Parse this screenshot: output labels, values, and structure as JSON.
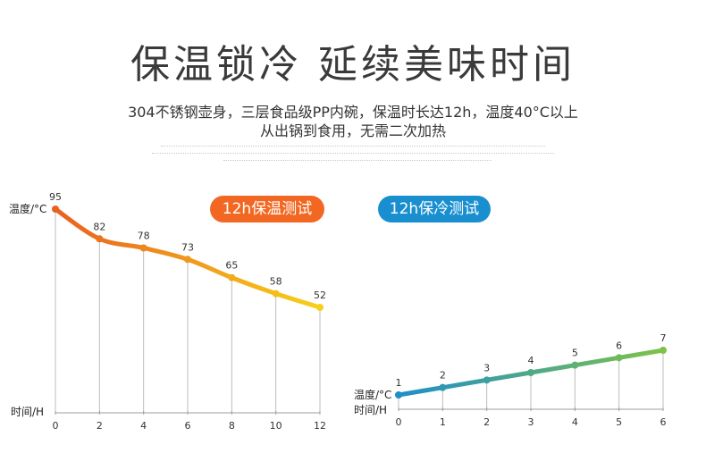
{
  "header": {
    "title": "保温锁冷 延续美味时间",
    "subtitle_line1": "304不锈钢壶身，三层食品级PP内碗，保温时长达12h，温度40°C以上",
    "subtitle_line2": "从出锅到食用，无需二次加热"
  },
  "chart_data": [
    {
      "type": "line",
      "badge": "12h保温测试",
      "ylabel": "温度/°C",
      "xlabel": "时间/H",
      "x": [
        0,
        2,
        4,
        6,
        8,
        10,
        12
      ],
      "values": [
        95,
        82,
        78,
        73,
        65,
        58,
        52
      ],
      "data_labels": [
        "95",
        "82",
        "78",
        "73",
        "65",
        "58",
        "52"
      ],
      "tick_labels": [
        "0",
        "2",
        "4",
        "6",
        "8",
        "10",
        "12"
      ],
      "colors": [
        "#e9601f",
        "#f7d01a"
      ],
      "badge_color": "#f26822"
    },
    {
      "type": "line",
      "badge": "12h保冷测试",
      "ylabel": "温度/°C",
      "xlabel": "时间/H",
      "x": [
        0,
        1,
        2,
        3,
        4,
        5,
        6
      ],
      "values": [
        1,
        2,
        3,
        4,
        5,
        6,
        7
      ],
      "data_labels": [
        "1",
        "2",
        "3",
        "4",
        "5",
        "6",
        "7"
      ],
      "tick_labels": [
        "0",
        "1",
        "2",
        "3",
        "4",
        "5",
        "6"
      ],
      "colors": [
        "#1e8fc8",
        "#7ec24a"
      ],
      "badge_color": "#1a8fd0"
    }
  ]
}
